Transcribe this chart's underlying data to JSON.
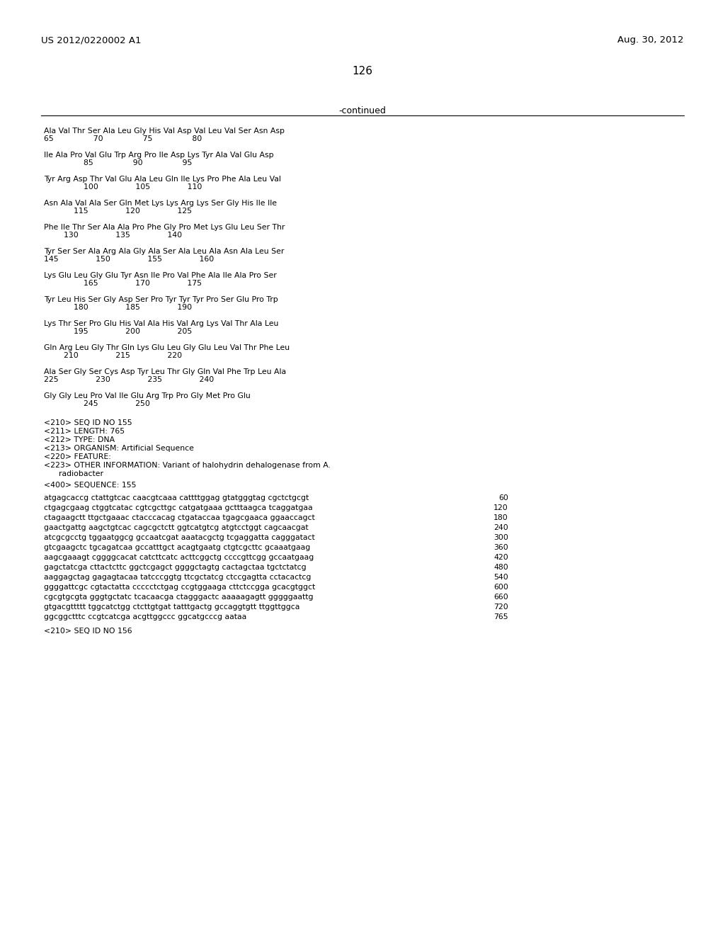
{
  "header_left": "US 2012/0220002 A1",
  "header_right": "Aug. 30, 2012",
  "page_number": "126",
  "continued_label": "-continued",
  "background_color": "#ffffff",
  "text_color": "#000000",
  "sequence_blocks": [
    {
      "line1": "Ala Val Thr Ser Ala Leu Gly His Val Asp Val Leu Val Ser Asn Asp",
      "line2": "65                70                75                80"
    },
    {
      "line1": "Ile Ala Pro Val Glu Trp Arg Pro Ile Asp Lys Tyr Ala Val Glu Asp",
      "line2": "                85                90                95"
    },
    {
      "line1": "Tyr Arg Asp Thr Val Glu Ala Leu Gln Ile Lys Pro Phe Ala Leu Val",
      "line2": "                100               105               110"
    },
    {
      "line1": "Asn Ala Val Ala Ser Gln Met Lys Lys Arg Lys Ser Gly His Ile Ile",
      "line2": "            115               120               125"
    },
    {
      "line1": "Phe Ile Thr Ser Ala Ala Pro Phe Gly Pro Met Lys Glu Leu Ser Thr",
      "line2": "        130               135               140"
    },
    {
      "line1": "Tyr Ser Ser Ala Arg Ala Gly Ala Ser Ala Leu Ala Asn Ala Leu Ser",
      "line2": "145               150               155               160"
    },
    {
      "line1": "Lys Glu Leu Gly Glu Tyr Asn Ile Pro Val Phe Ala Ile Ala Pro Ser",
      "line2": "                165               170               175"
    },
    {
      "line1": "Tyr Leu His Ser Gly Asp Ser Pro Tyr Tyr Tyr Pro Ser Glu Pro Trp",
      "line2": "            180               185               190"
    },
    {
      "line1": "Lys Thr Ser Pro Glu His Val Ala His Val Arg Lys Val Thr Ala Leu",
      "line2": "            195               200               205"
    },
    {
      "line1": "Gln Arg Leu Gly Thr Gln Lys Glu Leu Gly Glu Leu Val Thr Phe Leu",
      "line2": "        210               215               220"
    },
    {
      "line1": "Ala Ser Gly Ser Cys Asp Tyr Leu Thr Gly Gln Val Phe Trp Leu Ala",
      "line2": "225               230               235               240"
    },
    {
      "line1": "Gly Gly Leu Pro Val Ile Glu Arg Trp Pro Gly Met Pro Glu",
      "line2": "                245               250"
    }
  ],
  "metadata_lines": [
    "<210> SEQ ID NO 155",
    "<211> LENGTH: 765",
    "<212> TYPE: DNA",
    "<213> ORGANISM: Artificial Sequence",
    "<220> FEATURE:",
    "<223> OTHER INFORMATION: Variant of halohydrin dehalogenase from A.",
    "      radiobacter"
  ],
  "seq400_label": "<400> SEQUENCE: 155",
  "dna_lines": [
    {
      "seq": "atgagcaccg ctattgtcac caacgtcaaa cattttggag gtatgggtag cgctctgcgt",
      "num": "60"
    },
    {
      "seq": "ctgagcgaag ctggtcatac cgtcgcttgc catgatgaaa gctttaagca tcaggatgaa",
      "num": "120"
    },
    {
      "seq": "ctagaagctt ttgctgaaac ctacccacag ctgataccaa tgagcgaaca ggaaccagct",
      "num": "180"
    },
    {
      "seq": "gaactgattg aagctgtcac cagcgctctt ggtcatgtcg atgtcctggt cagcaacgat",
      "num": "240"
    },
    {
      "seq": "atcgcgcctg tggaatggcg gccaatcgat aaatacgctg tcgaggatta cagggatact",
      "num": "300"
    },
    {
      "seq": "gtcgaagctc tgcagatcaa gccatttgct acagtgaatg ctgtcgcttc gcaaatgaag",
      "num": "360"
    },
    {
      "seq": "aagcgaaagt cggggcacat catcttcatc acttcggctg ccccgttcgg gccaatgaag",
      "num": "420"
    },
    {
      "seq": "gagctatcga cttactcttc ggctcgagct ggggctagtg cactagctaa tgctctatcg",
      "num": "480"
    },
    {
      "seq": "aaggagctag gagagtacaa tatcccggtg ttcgctatcg ctccgagtta cctacactcg",
      "num": "540"
    },
    {
      "seq": "ggggattcgc cgtactatta ccccctctgag ccgtggaaga cttctccgga gcacgtggct",
      "num": "600"
    },
    {
      "seq": "cgcgtgcgta gggtgctatc tcacaacga ctagggactc aaaaagagtt gggggaattg",
      "num": "660"
    },
    {
      "seq": "gtgacgttttt tggcatctgg ctcttgtgat tatttgactg gccaggtgtt ttggttggca",
      "num": "720"
    },
    {
      "seq": "ggcggctttc ccgtcatcga acgttggccc ggcatgcccg aataa",
      "num": "765"
    }
  ],
  "final_label": "<210> SEQ ID NO 156"
}
